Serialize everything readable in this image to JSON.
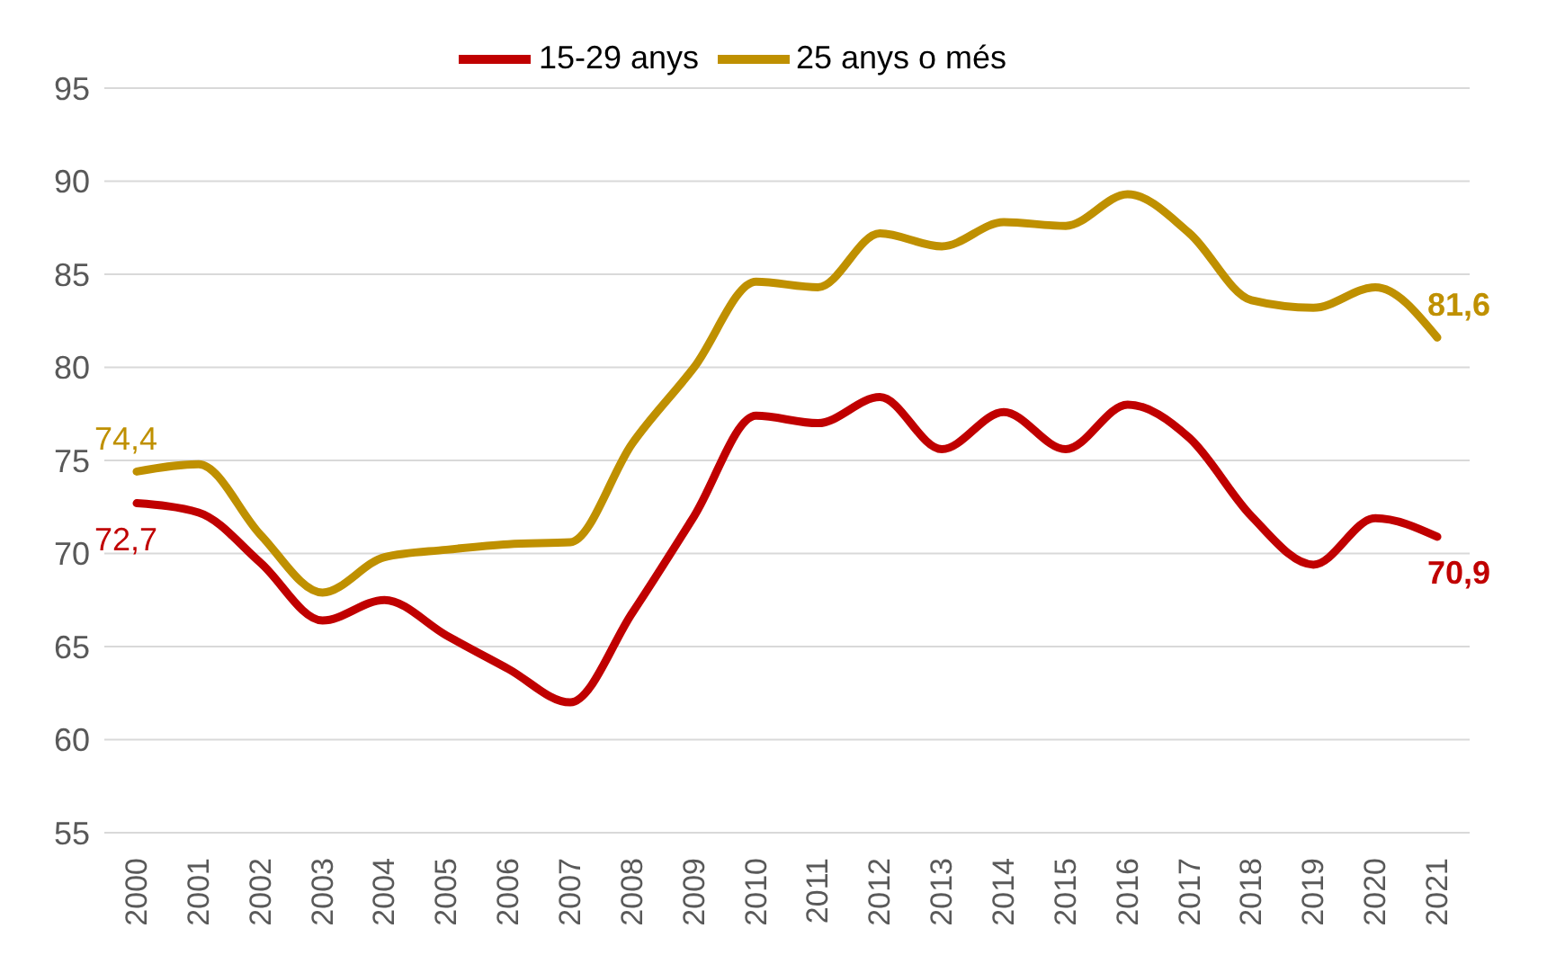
{
  "chart_data": {
    "type": "line",
    "categories": [
      "2000",
      "2001",
      "2002",
      "2003",
      "2004",
      "2005",
      "2006",
      "2007",
      "2008",
      "2009",
      "2010",
      "2011",
      "2012",
      "2013",
      "2014",
      "2015",
      "2016",
      "2017",
      "2018",
      "2019",
      "2020",
      "2021"
    ],
    "series": [
      {
        "name": "15-29 anys",
        "color": "#c00000",
        "values": [
          72.7,
          72.2,
          69.5,
          66.4,
          67.5,
          65.6,
          63.8,
          62.0,
          66.8,
          72.0,
          77.4,
          77.0,
          78.4,
          75.6,
          77.6,
          75.6,
          78.0,
          76.2,
          72.0,
          69.4,
          71.9,
          70.9
        ],
        "value_labels": [
          "72,7",
          null,
          null,
          null,
          null,
          null,
          null,
          null,
          null,
          null,
          null,
          null,
          null,
          null,
          null,
          null,
          null,
          null,
          null,
          null,
          null,
          "70,9"
        ]
      },
      {
        "name": "25 anys o més",
        "color": "#bf9000",
        "values": [
          74.4,
          74.8,
          71.0,
          67.9,
          69.8,
          70.2,
          70.5,
          70.6,
          75.9,
          80.0,
          84.6,
          84.3,
          87.2,
          86.5,
          87.8,
          87.6,
          89.3,
          87.2,
          83.6,
          83.2,
          84.3,
          81.6
        ],
        "value_labels": [
          "74,4",
          null,
          null,
          null,
          null,
          null,
          null,
          null,
          null,
          null,
          null,
          null,
          null,
          null,
          null,
          null,
          null,
          null,
          null,
          null,
          null,
          "81,6"
        ]
      }
    ],
    "ylim": [
      55,
      95
    ],
    "yticks": [
      55,
      60,
      65,
      70,
      75,
      80,
      85,
      90,
      95
    ],
    "grid": "y",
    "legend": "top",
    "marker": "none",
    "line_style": "solid"
  }
}
